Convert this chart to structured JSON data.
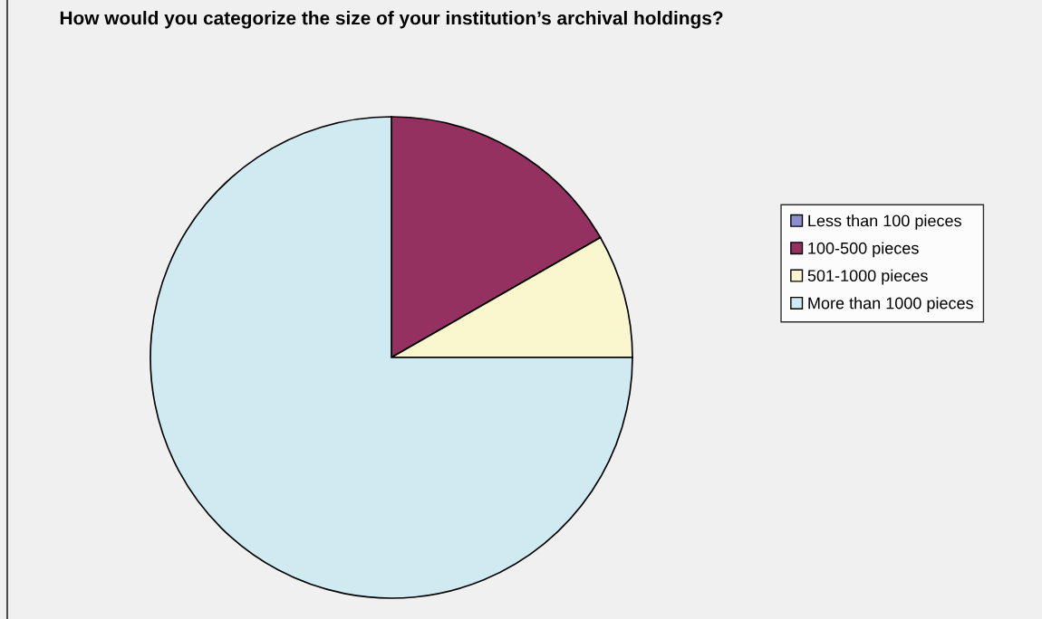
{
  "chart_data": {
    "type": "pie",
    "title": "How would you categorize the size of your institution’s archival holdings?",
    "categories": [
      "Less than 100 pieces",
      "100-500 pieces",
      "501-1000 pieces",
      "More than 1000 pieces"
    ],
    "values": [
      0,
      16.7,
      8.3,
      75
    ],
    "colors": [
      "#8e8ecc",
      "#943160",
      "#faf7cf",
      "#d0eaf1"
    ],
    "legend": "right"
  }
}
